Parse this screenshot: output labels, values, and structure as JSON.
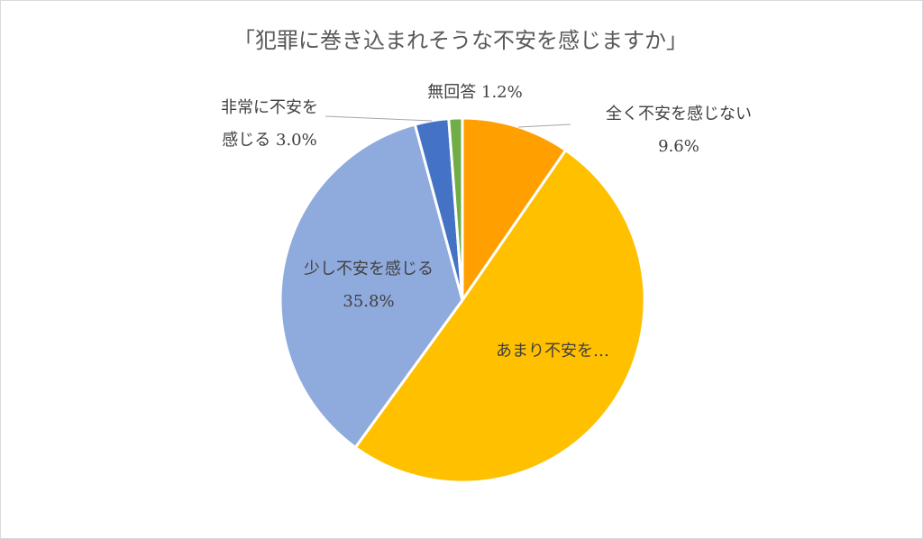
{
  "chart_data": {
    "type": "pie",
    "title": "「犯罪に巻き込まれそうな不安を感じますか」",
    "start_angle_deg": 0,
    "direction": "clockwise",
    "slices": [
      {
        "key": "zenku",
        "label_lines": [
          "全く不安を感じない",
          "9.6%"
        ],
        "value": 9.6,
        "color": "#FF9F00"
      },
      {
        "key": "amari",
        "label_lines": [
          "あまり不安を…"
        ],
        "value": 50.4,
        "color": "#FFC000"
      },
      {
        "key": "sukoshi",
        "label_lines": [
          "少し不安を感じる",
          "35.8%"
        ],
        "value": 35.8,
        "color": "#8FAADC"
      },
      {
        "key": "hijou",
        "label_lines": [
          "非常に不安を",
          "感じる 3.0%"
        ],
        "value": 3.0,
        "color": "#4472C4"
      },
      {
        "key": "mukaitou",
        "label_lines": [
          "無回答 1.2%"
        ],
        "value": 1.2,
        "color": "#70AD47"
      }
    ]
  }
}
